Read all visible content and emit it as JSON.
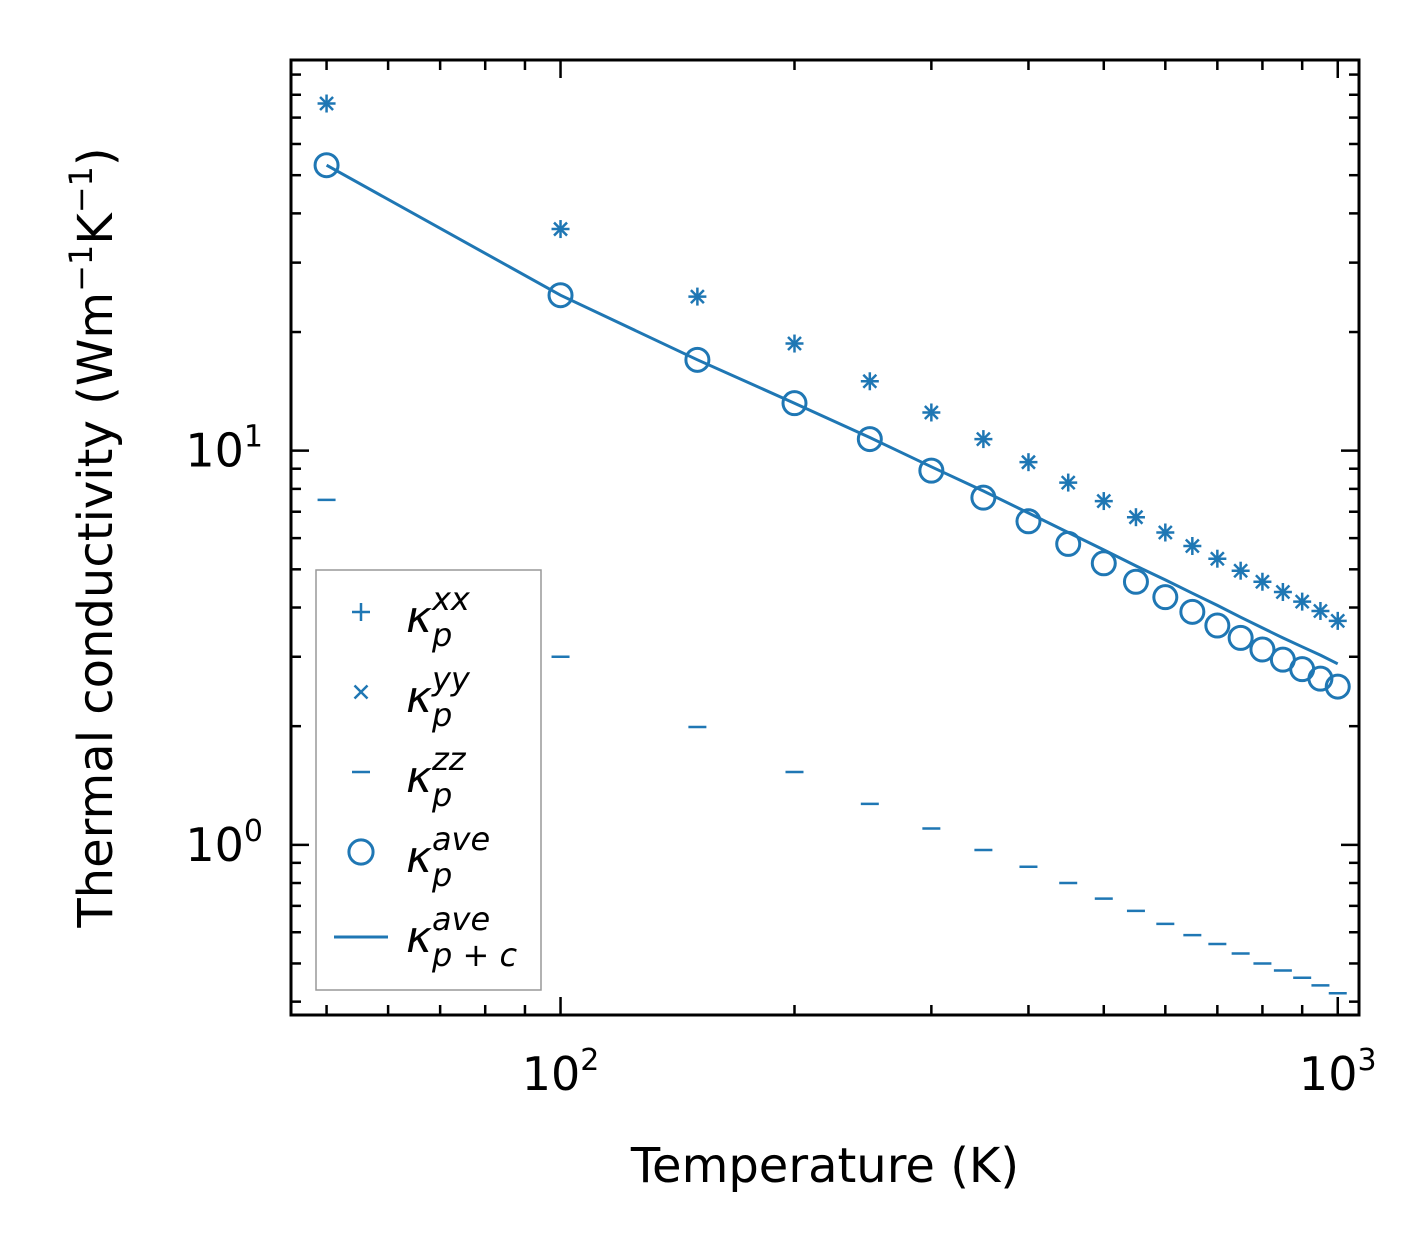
{
  "chart_data": {
    "type": "scatter",
    "xlabel": "Temperature (K)",
    "ylabel": {
      "prefix": "Thermal conductivity (Wm",
      "sup1": "−1",
      "mid": "K",
      "sup2": "−1",
      "suffix": ")"
    },
    "xscale": "log",
    "yscale": "log",
    "xlim": [
      45,
      1065
    ],
    "ylim": [
      0.37,
      98
    ],
    "x_ticks": [
      {
        "base": "10",
        "exp": "2"
      },
      {
        "base": "10",
        "exp": "3"
      }
    ],
    "y_ticks": [
      {
        "base": "10",
        "exp": "0"
      },
      {
        "base": "10",
        "exp": "1"
      }
    ],
    "color": "#1f77b4",
    "x": [
      50,
      100,
      150,
      200,
      250,
      300,
      350,
      400,
      450,
      500,
      550,
      600,
      650,
      700,
      750,
      800,
      850,
      900,
      950,
      1000
    ],
    "series": [
      {
        "name": "kxx",
        "marker": "+",
        "values": [
          76.0,
          36.5,
          24.6,
          18.7,
          15.0,
          12.5,
          10.7,
          9.35,
          8.3,
          7.45,
          6.78,
          6.2,
          5.73,
          5.32,
          4.96,
          4.65,
          4.38,
          4.14,
          3.92,
          3.7
        ]
      },
      {
        "name": "kyy",
        "marker": "x",
        "values": [
          76.0,
          36.5,
          24.6,
          18.7,
          15.0,
          12.5,
          10.7,
          9.35,
          8.3,
          7.45,
          6.78,
          6.2,
          5.73,
          5.32,
          4.96,
          4.65,
          4.38,
          4.14,
          3.92,
          3.7
        ]
      },
      {
        "name": "kzz",
        "marker": "_",
        "values": [
          7.5,
          3.0,
          1.99,
          1.53,
          1.27,
          1.1,
          0.97,
          0.88,
          0.8,
          0.73,
          0.68,
          0.63,
          0.59,
          0.56,
          0.53,
          0.5,
          0.48,
          0.46,
          0.44,
          0.42
        ]
      },
      {
        "name": "kave",
        "marker": "o",
        "values": [
          53.0,
          24.8,
          17.0,
          13.2,
          10.7,
          8.9,
          7.6,
          6.62,
          5.8,
          5.18,
          4.65,
          4.25,
          3.9,
          3.6,
          3.35,
          3.13,
          2.95,
          2.79,
          2.64,
          2.52
        ]
      },
      {
        "name": "kpc",
        "marker": "line",
        "values": [
          53.0,
          24.8,
          17.0,
          13.2,
          10.8,
          9.1,
          7.9,
          6.95,
          6.2,
          5.6,
          5.1,
          4.7,
          4.35,
          4.05,
          3.78,
          3.55,
          3.35,
          3.18,
          3.03,
          2.88
        ]
      }
    ],
    "legend": {
      "position": "lower-left",
      "entries": [
        {
          "symbol": "+",
          "base": "κ",
          "sup": "xx",
          "sub": "p"
        },
        {
          "symbol": "x",
          "base": "κ",
          "sup": "yy",
          "sub": "p"
        },
        {
          "symbol": "_",
          "base": "κ",
          "sup": "zz",
          "sub": "p"
        },
        {
          "symbol": "o",
          "base": "κ",
          "sup": "ave",
          "sub": "p"
        },
        {
          "symbol": "line",
          "base": "κ",
          "sup": "ave",
          "sub": "p + c"
        }
      ]
    }
  }
}
